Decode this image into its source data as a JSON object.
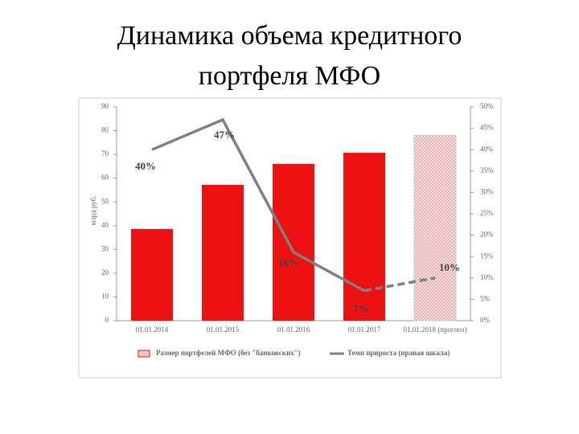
{
  "title": [
    "Динамика объема кредитного",
    "портфеля МФО"
  ],
  "chart_data": {
    "type": "bar-line",
    "ylabel": "млрд руб.",
    "categories": [
      "01.01.2014",
      "01.01.2015",
      "01.01.2016",
      "01.01.2017",
      "01.01.2018 (прогноз)"
    ],
    "series": [
      {
        "name": "Размер портфелей МФО (без \"банковских\")",
        "type": "bar",
        "color": "#ee1111",
        "values": [
          38.6,
          57.2,
          66,
          70.7,
          78
        ],
        "hatched_from_index": 4
      },
      {
        "name": "Темп прироста (правая шкала)",
        "type": "line",
        "axis": "y2",
        "color": "#808080",
        "values": [
          40,
          47,
          16,
          7,
          10
        ],
        "value_labels": [
          "40%",
          "47%",
          "16%",
          "7%",
          "10%"
        ],
        "dashed_from_index": 3
      }
    ],
    "ylim": [
      0,
      90
    ],
    "yticks": [
      0,
      10,
      20,
      30,
      40,
      50,
      60,
      70,
      80,
      90
    ],
    "y2lim": [
      0,
      50
    ],
    "y2ticks": [
      {
        "value": 0,
        "label": "0%"
      },
      {
        "value": 5,
        "label": "5%"
      },
      {
        "value": 10,
        "label": "10%"
      },
      {
        "value": 15,
        "label": "15%"
      },
      {
        "value": 20,
        "label": "20%"
      },
      {
        "value": 25,
        "label": "25%"
      },
      {
        "value": 30,
        "label": "30%"
      },
      {
        "value": 35,
        "label": "35%"
      },
      {
        "value": 40,
        "label": "40%"
      },
      {
        "value": 45,
        "label": "45%"
      },
      {
        "value": 50,
        "label": "50%"
      }
    ]
  }
}
